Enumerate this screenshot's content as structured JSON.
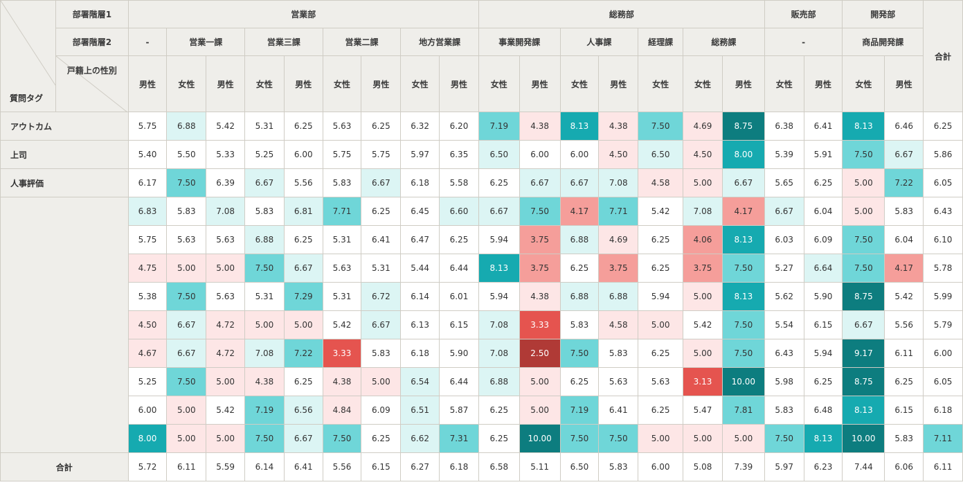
{
  "header": {
    "level1_label": "部署階層1",
    "level2_label": "部署階層2",
    "gender_label": "戸籍上の性別",
    "question_tag_label": "質問タグ",
    "total_label": "合計",
    "dept1": [
      "営業部",
      "総務部",
      "販売部",
      "開発部"
    ],
    "dept2": [
      "-",
      "営業一課",
      "営業三課",
      "営業二課",
      "地方営業課",
      "事業開発課",
      "人事課",
      "経理課",
      "総務課",
      "-",
      "商品開発課"
    ],
    "genders": [
      "男性",
      "女性",
      "男性",
      "女性",
      "男性",
      "女性",
      "男性",
      "女性",
      "男性",
      "女性",
      "男性",
      "女性",
      "男性",
      "女性",
      "女性",
      "男性",
      "女性",
      "男性",
      "女性",
      "男性"
    ]
  },
  "rows": [
    {
      "label": "アウトカム",
      "values": [
        "5.75",
        "6.88",
        "5.42",
        "5.31",
        "6.25",
        "5.63",
        "6.25",
        "6.32",
        "6.20",
        "7.19",
        "4.38",
        "8.13",
        "4.38",
        "7.50",
        "4.69",
        "8.75",
        "6.38",
        "6.41",
        "8.13",
        "6.46",
        "6.25"
      ]
    },
    {
      "label": "上司",
      "values": [
        "5.40",
        "5.50",
        "5.33",
        "5.25",
        "6.00",
        "5.75",
        "5.75",
        "5.97",
        "6.35",
        "6.50",
        "6.00",
        "6.00",
        "4.50",
        "6.50",
        "4.50",
        "8.00",
        "5.39",
        "5.91",
        "7.50",
        "6.67",
        "5.86"
      ]
    },
    {
      "label": "人事評価",
      "values": [
        "6.17",
        "7.50",
        "6.39",
        "6.67",
        "5.56",
        "5.83",
        "6.67",
        "6.18",
        "5.58",
        "6.25",
        "6.67",
        "6.67",
        "7.08",
        "4.58",
        "5.00",
        "6.67",
        "5.65",
        "6.25",
        "5.00",
        "7.22",
        "6.05"
      ]
    },
    {
      "label": "",
      "values": [
        "6.83",
        "5.83",
        "7.08",
        "5.83",
        "6.81",
        "7.71",
        "6.25",
        "6.45",
        "6.60",
        "6.67",
        "7.50",
        "4.17",
        "7.71",
        "5.42",
        "7.08",
        "4.17",
        "6.67",
        "6.04",
        "5.00",
        "5.83",
        "6.43"
      ]
    },
    {
      "label": "",
      "values": [
        "5.75",
        "5.63",
        "5.63",
        "6.88",
        "6.25",
        "5.31",
        "6.41",
        "6.47",
        "6.25",
        "5.94",
        "3.75",
        "6.88",
        "4.69",
        "6.25",
        "4.06",
        "8.13",
        "6.03",
        "6.09",
        "7.50",
        "6.04",
        "6.10"
      ]
    },
    {
      "label": "",
      "values": [
        "4.75",
        "5.00",
        "5.00",
        "7.50",
        "6.67",
        "5.63",
        "5.31",
        "5.44",
        "6.44",
        "8.13",
        "3.75",
        "6.25",
        "3.75",
        "6.25",
        "3.75",
        "7.50",
        "5.27",
        "6.64",
        "7.50",
        "4.17",
        "5.78"
      ]
    },
    {
      "label": "",
      "values": [
        "5.38",
        "7.50",
        "5.63",
        "5.31",
        "7.29",
        "5.31",
        "6.72",
        "6.14",
        "6.01",
        "5.94",
        "4.38",
        "6.88",
        "6.88",
        "5.94",
        "5.00",
        "8.13",
        "5.62",
        "5.90",
        "8.75",
        "5.42",
        "5.99"
      ]
    },
    {
      "label": "",
      "values": [
        "4.50",
        "6.67",
        "4.72",
        "5.00",
        "5.00",
        "5.42",
        "6.67",
        "6.13",
        "6.15",
        "7.08",
        "3.33",
        "5.83",
        "4.58",
        "5.00",
        "5.42",
        "7.50",
        "5.54",
        "6.15",
        "6.67",
        "5.56",
        "5.79"
      ]
    },
    {
      "label": "",
      "values": [
        "4.67",
        "6.67",
        "4.72",
        "7.08",
        "7.22",
        "3.33",
        "5.83",
        "6.18",
        "5.90",
        "7.08",
        "2.50",
        "7.50",
        "5.83",
        "6.25",
        "5.00",
        "7.50",
        "6.43",
        "5.94",
        "9.17",
        "6.11",
        "6.00"
      ]
    },
    {
      "label": "",
      "values": [
        "5.25",
        "7.50",
        "5.00",
        "4.38",
        "6.25",
        "4.38",
        "5.00",
        "6.54",
        "6.44",
        "6.88",
        "5.00",
        "6.25",
        "5.63",
        "5.63",
        "3.13",
        "10.00",
        "5.98",
        "6.25",
        "8.75",
        "6.25",
        "6.05"
      ]
    },
    {
      "label": "",
      "values": [
        "6.00",
        "5.00",
        "5.42",
        "7.19",
        "6.56",
        "4.84",
        "6.09",
        "6.51",
        "5.87",
        "6.25",
        "5.00",
        "7.19",
        "6.41",
        "6.25",
        "5.47",
        "7.81",
        "5.83",
        "6.48",
        "8.13",
        "6.15",
        "6.18"
      ]
    },
    {
      "label": "",
      "values": [
        "8.00",
        "5.00",
        "5.00",
        "7.50",
        "6.67",
        "7.50",
        "6.25",
        "6.62",
        "7.31",
        "6.25",
        "10.00",
        "7.50",
        "7.50",
        "5.00",
        "5.00",
        "5.00",
        "7.50",
        "8.13",
        "10.00",
        "5.83",
        "7.11"
      ]
    },
    {
      "label": "合計",
      "values": [
        "5.72",
        "6.11",
        "5.59",
        "6.14",
        "6.41",
        "5.56",
        "6.15",
        "6.27",
        "6.18",
        "6.58",
        "5.11",
        "6.50",
        "5.83",
        "6.00",
        "5.08",
        "7.39",
        "5.97",
        "6.23",
        "7.44",
        "6.06",
        "6.11"
      ]
    }
  ],
  "colors": {
    "header_bg": "#efeeea",
    "teal_light": "#dcf5f4",
    "teal_mid": "#6fd6d8",
    "teal_strong": "#16aab0",
    "teal_dark": "#0d7d7f",
    "pink_light": "#fde6e6",
    "pink_mid": "#f59e9a",
    "red": "#e5544f",
    "red_dark": "#b03a36"
  }
}
